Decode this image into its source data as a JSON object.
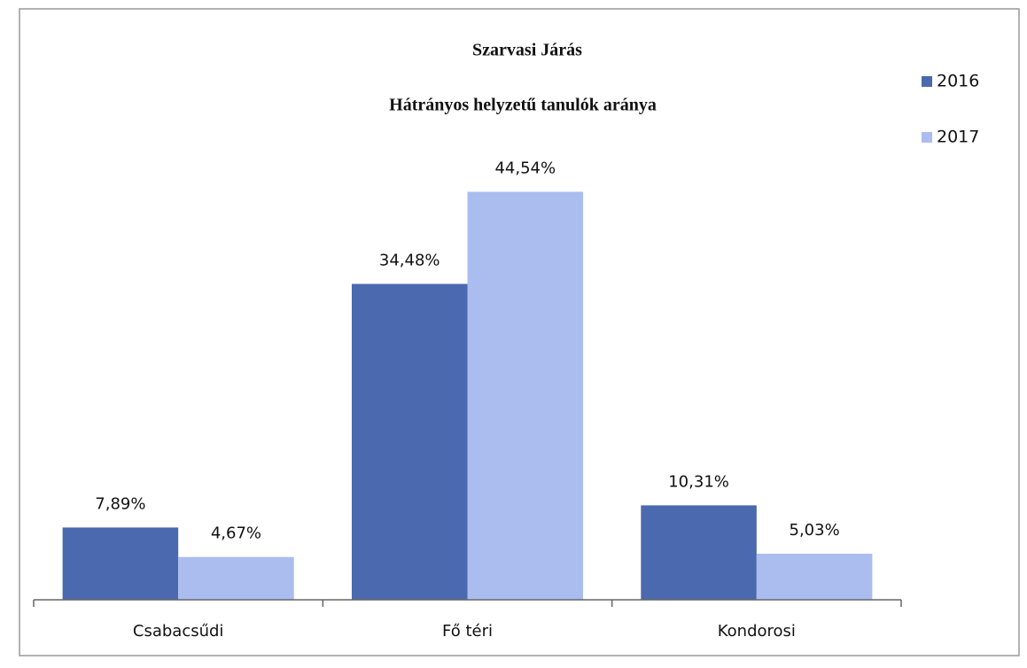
{
  "chart_data": {
    "type": "bar",
    "title": "Szarvasi Járás",
    "subtitle": "Hátrányos helyzetű tanulók aránya",
    "categories": [
      "Csabacsűdi",
      "Fő téri",
      "Kondorosi"
    ],
    "series": [
      {
        "name": "2016",
        "color": "#4a69ae",
        "values": [
          7.89,
          34.48,
          10.31
        ],
        "value_labels": [
          "7,89%",
          "34,48%",
          "10,31%"
        ]
      },
      {
        "name": "2017",
        "color": "#aabdee",
        "values": [
          4.67,
          44.54,
          5.03
        ],
        "value_labels": [
          "4,67%",
          "44,54%",
          "5,03%"
        ]
      }
    ],
    "ylim": [
      0,
      50
    ],
    "legend": "top-right"
  }
}
